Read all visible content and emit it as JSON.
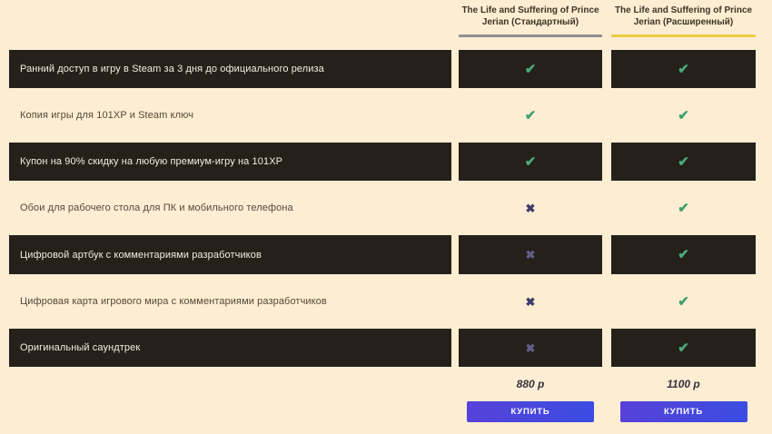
{
  "columns": [
    {
      "title_line1": "The Life and Suffering of Prince",
      "title_line2": "Jerian (Стандартный)",
      "underline_color": "#908e94",
      "price": "880 р",
      "buy_label": "КУПИТЬ"
    },
    {
      "title_line1": "The Life and Suffering of Prince",
      "title_line2": "Jerian (Расширенный)",
      "underline_color": "#eecb3f",
      "price": "1100 р",
      "buy_label": "КУПИТЬ"
    }
  ],
  "rows": [
    {
      "label": "Ранний доступ в игру в Steam за 3 дня до официального релиза",
      "standard": "check",
      "extended": "check"
    },
    {
      "label": "Копия игры для 101XP и Steam ключ",
      "standard": "check",
      "extended": "check"
    },
    {
      "label": "Купон на 90% скидку на любую премиум-игру на 101XP",
      "standard": "check",
      "extended": "check"
    },
    {
      "label": "Обои для рабочего стола для ПК и мобильного телефона",
      "standard": "cross",
      "extended": "check"
    },
    {
      "label": "Цифровой артбук с комментариями разработчиков",
      "standard": "cross",
      "extended": "check"
    },
    {
      "label": "Цифровая карта игрового мира с комментариями разработчиков",
      "standard": "cross",
      "extended": "check"
    },
    {
      "label": "Оригинальный саундтрек",
      "standard": "cross",
      "extended": "check"
    }
  ],
  "glyphs": {
    "check": "✔",
    "cross": "✖"
  },
  "colors": {
    "page_background": "#fcedd3",
    "row_dark_background": "#25201a",
    "check_green": "#3fa070",
    "cross_navy": "#3e3a6a",
    "cross_muted": "#615c89",
    "button_gradient_start": "#5742d9",
    "button_gradient_end": "#3b4ce2",
    "standard_underline": "#908e94",
    "extended_underline": "#eecb3f"
  }
}
